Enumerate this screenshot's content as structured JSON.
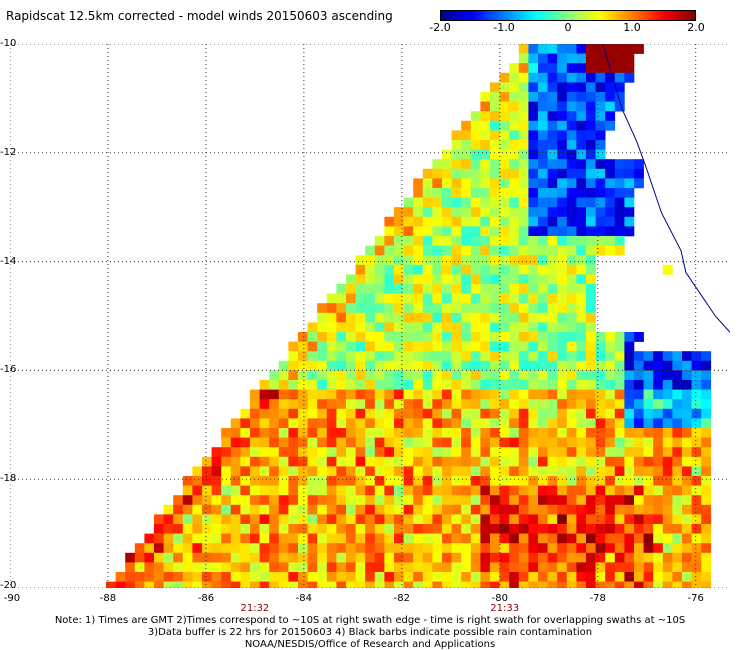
{
  "title": "Rapidscat 12.5km corrected - model winds 20150603 ascending",
  "colorbar": {
    "labels": [
      "-2.0",
      "-1.0",
      "0",
      "1.0",
      "2.0"
    ],
    "values": [
      -2.0,
      -1.0,
      0,
      1.0,
      2.0
    ],
    "min": -2.0,
    "max": 2.0,
    "colors": [
      "#00008f",
      "#0000ff",
      "#0080ff",
      "#00ffff",
      "#80ff80",
      "#ffff00",
      "#ff8000",
      "#ff0000",
      "#800000"
    ]
  },
  "axes": {
    "lat_labels": [
      "-10",
      "-12",
      "-14",
      "-16",
      "-18",
      "-20"
    ],
    "lat_values": [
      -10,
      -12,
      -14,
      -16,
      -18,
      -20
    ],
    "lon_labels": [
      "-90",
      "-88",
      "-86",
      "-84",
      "-82",
      "-80",
      "-78",
      "-76"
    ],
    "lon_values": [
      -90,
      -88,
      -86,
      -84,
      -82,
      -80,
      -78,
      -76
    ],
    "lat_range": [
      -20,
      -10
    ],
    "lon_range": [
      -90,
      -75.3
    ],
    "grid": "dotted"
  },
  "swath_times": [
    {
      "label": "21:32",
      "lon": -85
    },
    {
      "label": "21:33",
      "lon": -79.9
    }
  ],
  "notes": [
    "Note: 1) Times are GMT 2)Times correspond to ~10S at right swath edge - time is right swath for overlapping swaths at ~10S",
    "3)Data buffer is 22 hrs for 20150603 4) Black barbs indicate possible rain contamination",
    "NOAA/NESDIS/Office of Research and Applications"
  ]
}
